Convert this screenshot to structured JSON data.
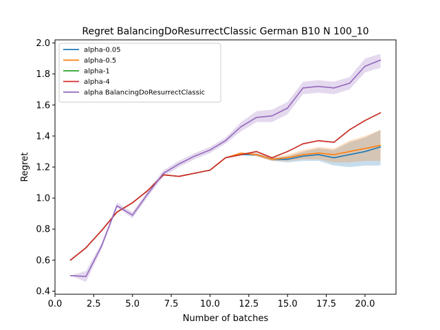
{
  "chart_data": {
    "type": "line",
    "title": "Regret BalancingDoResurrectClassic German B10 N 100_10",
    "xlabel": "Number of batches",
    "ylabel": "Regret",
    "xlim": [
      0,
      22
    ],
    "ylim": [
      0.38,
      2.02
    ],
    "xticks": [
      0.0,
      2.5,
      5.0,
      7.5,
      10.0,
      12.5,
      15.0,
      17.5,
      20.0
    ],
    "xtick_labels": [
      "0.0",
      "2.5",
      "5.0",
      "7.5",
      "10.0",
      "12.5",
      "15.0",
      "17.5",
      "20.0"
    ],
    "yticks": [
      0.4,
      0.6,
      0.8,
      1.0,
      1.2,
      1.4,
      1.6,
      1.8,
      2.0
    ],
    "ytick_labels": [
      "0.4",
      "0.6",
      "0.8",
      "1.0",
      "1.2",
      "1.4",
      "1.6",
      "1.8",
      "2.0"
    ],
    "grid": false,
    "legend_position": "top-left",
    "x": [
      1,
      2,
      3,
      4,
      5,
      6,
      7,
      8,
      9,
      10,
      11,
      12,
      13,
      14,
      15,
      16,
      17,
      18,
      19,
      20,
      21
    ],
    "series": [
      {
        "name": "alpha-0.05",
        "color": "#1f77b4",
        "values": [
          0.6,
          0.68,
          0.79,
          0.91,
          0.97,
          1.05,
          1.15,
          1.14,
          1.16,
          1.18,
          1.26,
          1.28,
          1.28,
          1.25,
          1.25,
          1.27,
          1.28,
          1.26,
          1.28,
          1.3,
          1.33
        ],
        "band_low": [
          0.6,
          0.68,
          0.79,
          0.91,
          0.97,
          1.05,
          1.15,
          1.14,
          1.16,
          1.18,
          1.26,
          1.28,
          1.27,
          1.24,
          1.23,
          1.24,
          1.24,
          1.21,
          1.2,
          1.21,
          1.21
        ],
        "band_high": [
          0.6,
          0.68,
          0.79,
          0.91,
          0.97,
          1.05,
          1.15,
          1.14,
          1.16,
          1.18,
          1.26,
          1.28,
          1.29,
          1.26,
          1.27,
          1.3,
          1.32,
          1.31,
          1.36,
          1.39,
          1.44
        ]
      },
      {
        "name": "alpha-0.5",
        "color": "#ff7f0e",
        "values": [
          0.6,
          0.68,
          0.79,
          0.91,
          0.97,
          1.05,
          1.15,
          1.14,
          1.16,
          1.18,
          1.26,
          1.29,
          1.28,
          1.25,
          1.26,
          1.28,
          1.29,
          1.28,
          1.3,
          1.32,
          1.34
        ],
        "band_low": [
          0.6,
          0.68,
          0.79,
          0.91,
          0.97,
          1.05,
          1.15,
          1.14,
          1.16,
          1.18,
          1.26,
          1.28,
          1.27,
          1.24,
          1.24,
          1.25,
          1.25,
          1.23,
          1.23,
          1.24,
          1.24
        ],
        "band_high": [
          0.6,
          0.68,
          0.79,
          0.91,
          0.97,
          1.05,
          1.15,
          1.14,
          1.16,
          1.18,
          1.26,
          1.29,
          1.29,
          1.26,
          1.28,
          1.31,
          1.33,
          1.32,
          1.37,
          1.4,
          1.44
        ]
      },
      {
        "name": "alpha-1",
        "color": "#2ca02c",
        "values": [
          0.6,
          0.68,
          0.79,
          0.91,
          0.97,
          1.05,
          1.15,
          1.14,
          1.16,
          1.18,
          1.26,
          1.28,
          1.3,
          1.26,
          1.3,
          1.35,
          1.37,
          1.36,
          1.44,
          1.5,
          1.55
        ]
      },
      {
        "name": "alpha-4",
        "color": "#d62728",
        "values": [
          0.6,
          0.68,
          0.79,
          0.91,
          0.97,
          1.05,
          1.15,
          1.14,
          1.16,
          1.18,
          1.26,
          1.28,
          1.3,
          1.26,
          1.3,
          1.35,
          1.37,
          1.36,
          1.44,
          1.5,
          1.55
        ]
      },
      {
        "name": "alpha BalancingDoResurrectClassic",
        "color": "#9467bd",
        "values": [
          0.5,
          0.495,
          0.69,
          0.95,
          0.89,
          1.03,
          1.16,
          1.22,
          1.27,
          1.31,
          1.37,
          1.46,
          1.52,
          1.53,
          1.58,
          1.71,
          1.72,
          1.71,
          1.74,
          1.85,
          1.89
        ],
        "band_low": [
          0.5,
          0.46,
          0.67,
          0.94,
          0.87,
          1.01,
          1.14,
          1.2,
          1.25,
          1.29,
          1.35,
          1.43,
          1.49,
          1.49,
          1.54,
          1.67,
          1.68,
          1.67,
          1.7,
          1.81,
          1.84
        ],
        "band_high": [
          0.5,
          0.53,
          0.71,
          0.97,
          0.91,
          1.05,
          1.18,
          1.24,
          1.29,
          1.33,
          1.39,
          1.49,
          1.56,
          1.57,
          1.62,
          1.75,
          1.76,
          1.75,
          1.78,
          1.9,
          1.93
        ]
      }
    ]
  }
}
